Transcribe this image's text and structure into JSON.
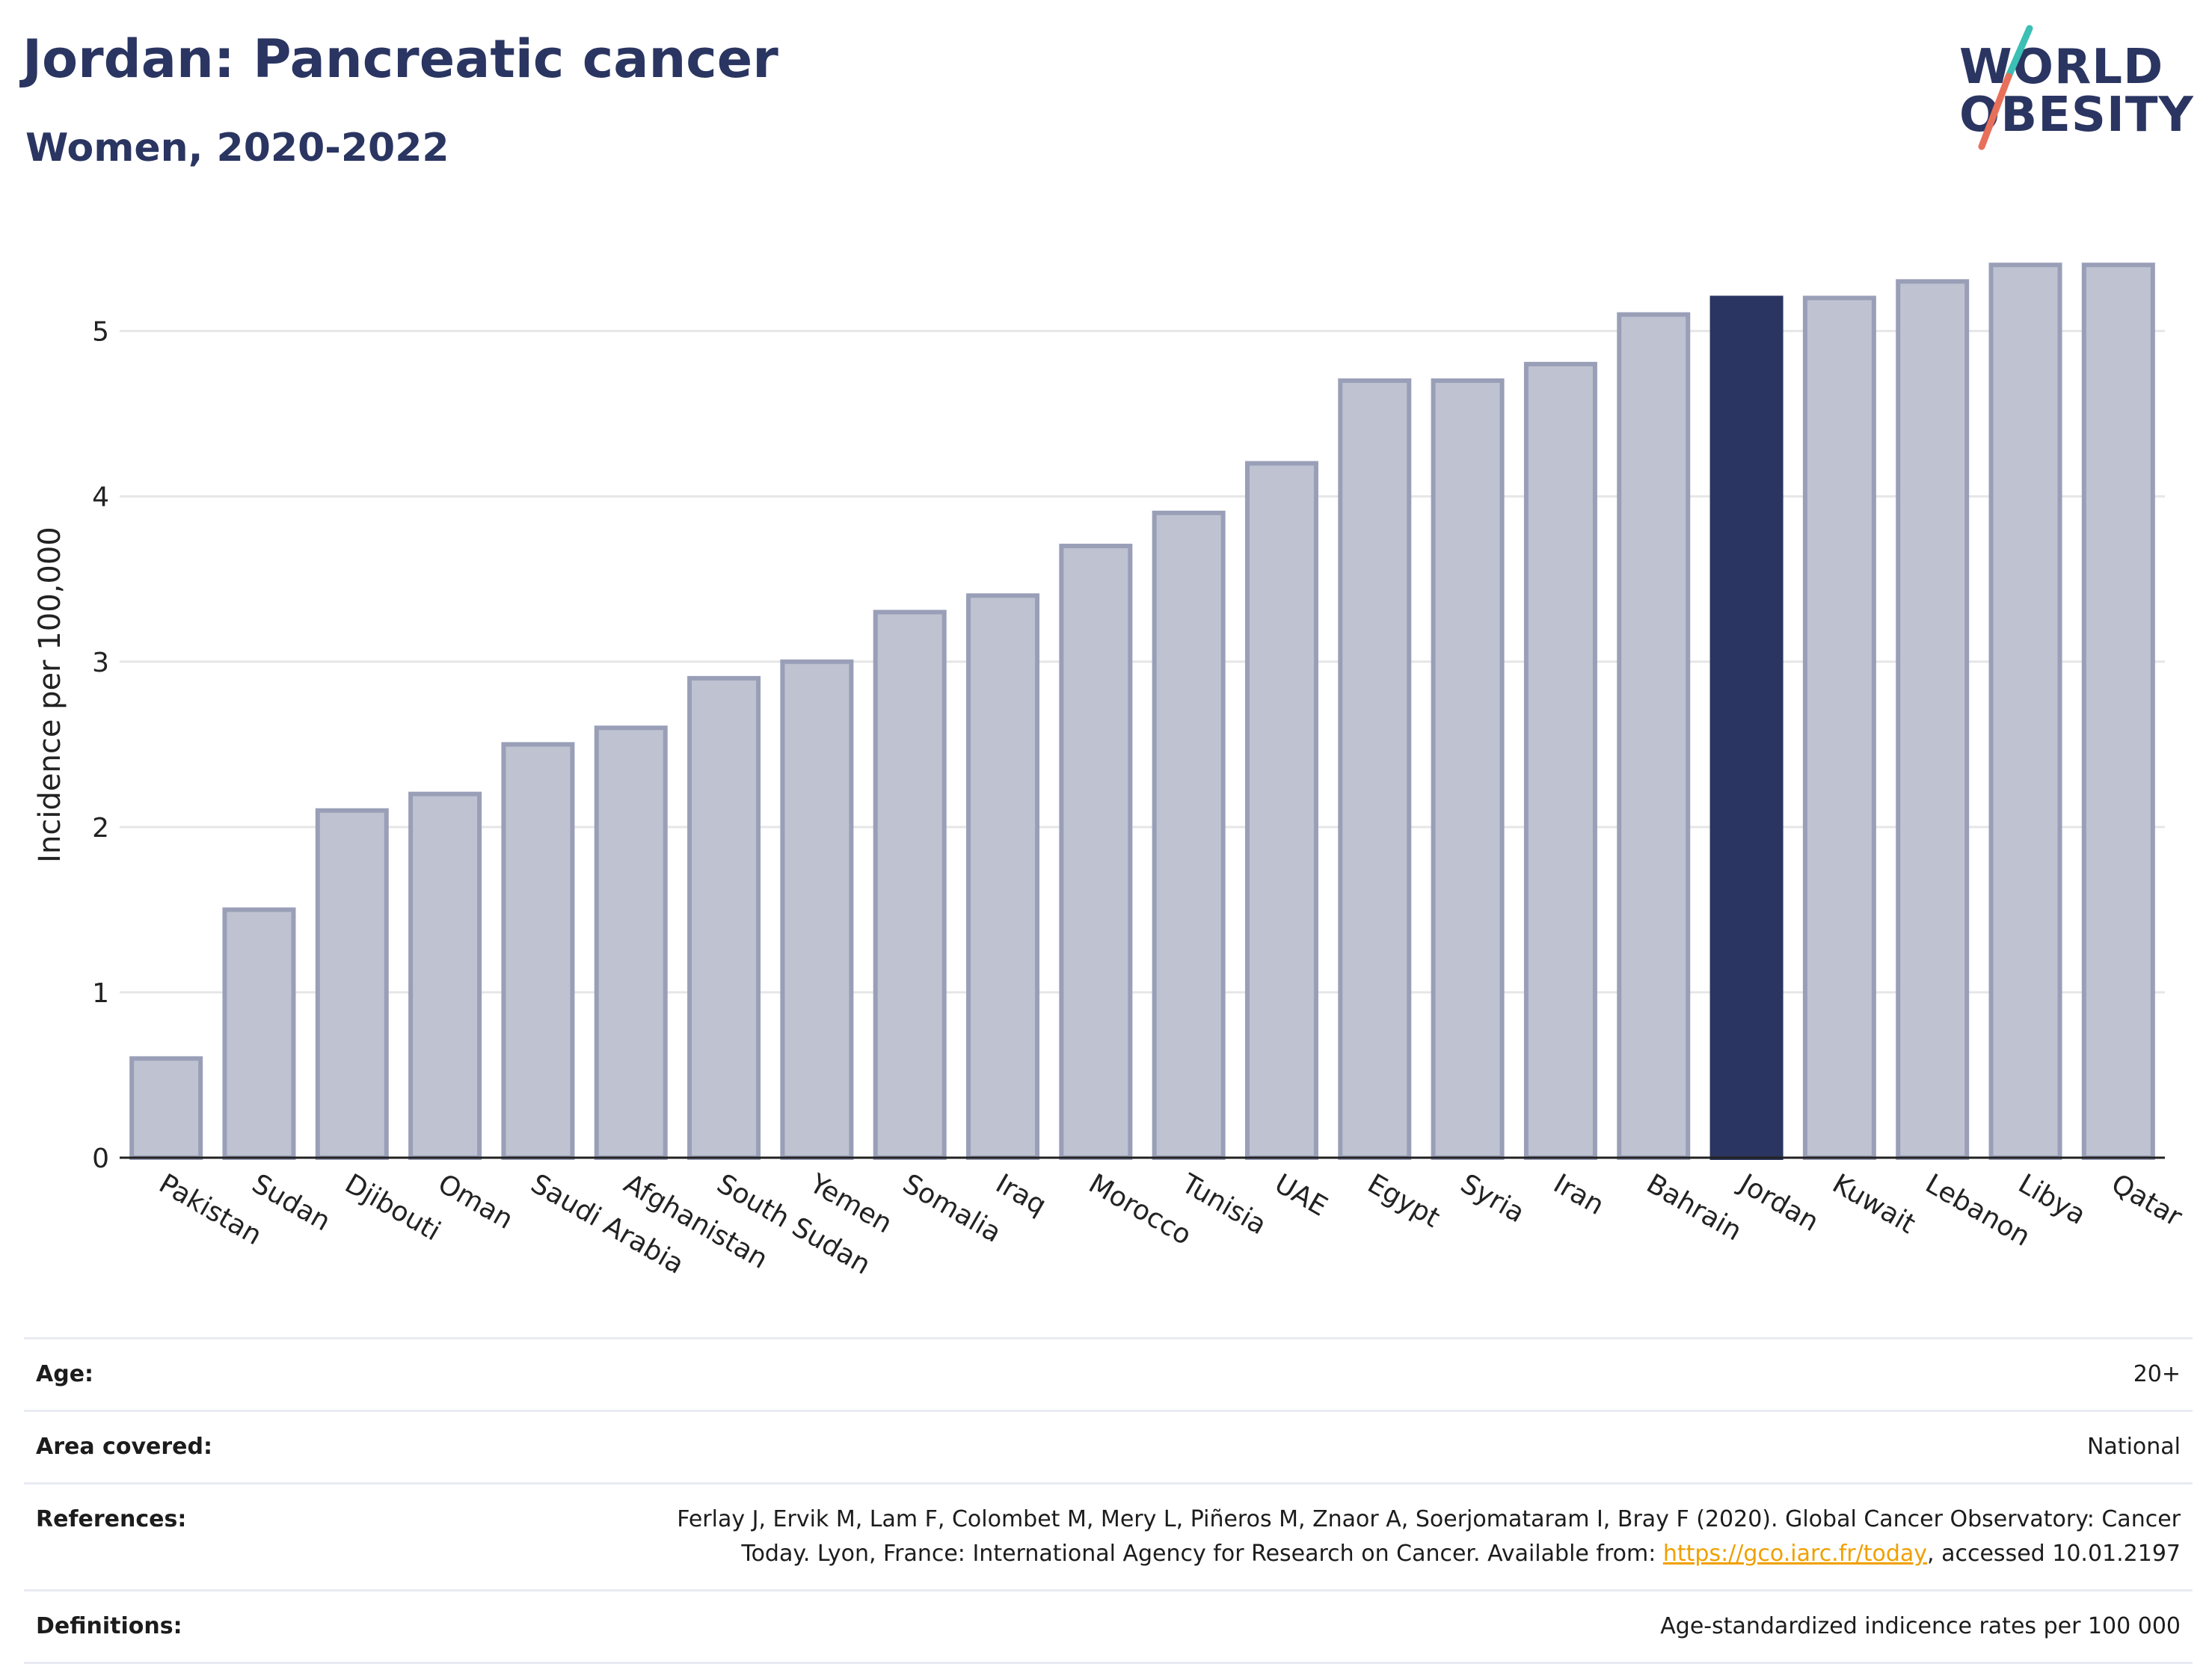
{
  "header": {
    "title": "Jordan: Pancreatic cancer",
    "subtitle": "Women, 2020-2022"
  },
  "logo": {
    "line1": "WORLD",
    "line2": "OBESITY",
    "colors": {
      "text": "#2a3561",
      "slash_top": "#3cbfb4",
      "slash_bottom": "#e8705a"
    }
  },
  "colors": {
    "highlight": "#2a3561",
    "bar_fill": "#bfc2d0",
    "bar_stroke": "#9a9fb8",
    "grid": "#e6e6e6",
    "link": "#f0a000"
  },
  "chart_data": {
    "type": "bar",
    "categories": [
      "Pakistan",
      "Sudan",
      "Djibouti",
      "Oman",
      "Saudi Arabia",
      "Afghanistan",
      "South Sudan",
      "Yemen",
      "Somalia",
      "Iraq",
      "Morocco",
      "Tunisia",
      "UAE",
      "Egypt",
      "Syria",
      "Iran",
      "Bahrain",
      "Jordan",
      "Kuwait",
      "Lebanon",
      "Libya",
      "Qatar"
    ],
    "values": [
      0.6,
      1.5,
      2.1,
      2.2,
      2.5,
      2.6,
      2.9,
      3.0,
      3.3,
      3.4,
      3.7,
      3.9,
      4.2,
      4.7,
      4.7,
      4.8,
      5.1,
      5.2,
      5.2,
      5.3,
      5.4,
      5.4
    ],
    "highlight": "Jordan",
    "ylabel": "Incidence per 100,000",
    "xlabel": "",
    "ylim": [
      0,
      5.6
    ],
    "yticks": [
      0,
      1,
      2,
      3,
      4,
      5
    ],
    "grid": true
  },
  "info": {
    "age": {
      "label": "Age:",
      "value": "20+"
    },
    "area": {
      "label": "Area covered:",
      "value": "National"
    },
    "references": {
      "label": "References:",
      "text1": "Ferlay J, Ervik M, Lam F, Colombet M, Mery L, Piñeros M, Znaor A, Soerjomataram I, Bray F (2020). Global Cancer Observatory: Cancer Today. Lyon, France: International Agency for Research on Cancer. Available from: ",
      "link": "https://gco.iarc.fr/today",
      "text2": ", accessed 10.01.2197"
    },
    "definitions": {
      "label": "Definitions:",
      "value": "Age-standardized indicence rates per 100 000"
    }
  }
}
